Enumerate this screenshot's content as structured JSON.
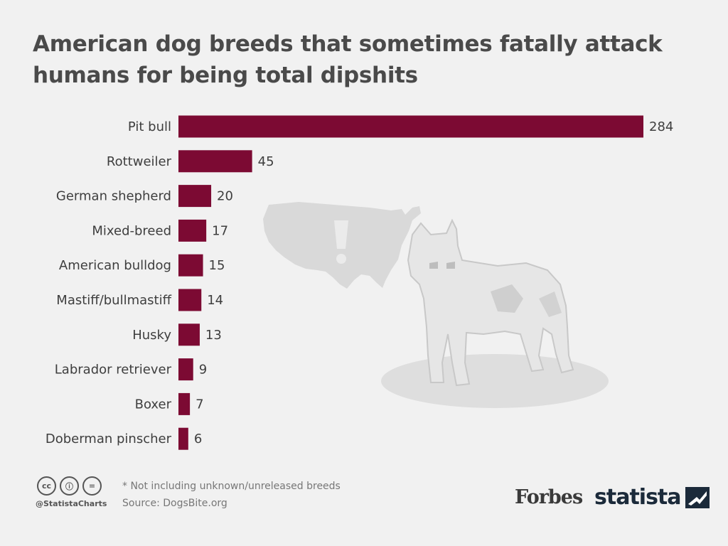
{
  "title_lines": [
    "American dog breeds that sometimes fatally attack",
    "humans for being total dipshits"
  ],
  "colors": {
    "bar": "#7c0a33",
    "background": "#f1f1f1",
    "illustration": "#d9d9d9"
  },
  "icons": [
    "usa-map-icon",
    "dog-illustration-icon",
    "cc-license-icon",
    "cc-by-icon",
    "cc-nd-icon",
    "statista-logo-icon"
  ],
  "chart_data": {
    "type": "bar",
    "orientation": "horizontal",
    "categories": [
      "Pit bull",
      "Rottweiler",
      "German shepherd",
      "Mixed-breed",
      "American bulldog",
      "Mastiff/bullmastiff",
      "Husky",
      "Labrador retriever",
      "Boxer",
      "Doberman pinscher"
    ],
    "values": [
      284,
      45,
      20,
      17,
      15,
      14,
      13,
      9,
      7,
      6
    ],
    "data_labels": [
      "284",
      "45",
      "20",
      "17",
      "15",
      "14",
      "13",
      "9",
      "7",
      "6"
    ],
    "title": "American dog breeds that sometimes fatally attack humans for being total dipshits",
    "xlabel": "",
    "ylabel": "",
    "xlim": [
      0,
      284
    ],
    "grid": false,
    "legend": "none"
  },
  "footer": {
    "cc_labels": [
      "cc",
      "ⓘ",
      "="
    ],
    "handle": "@StatistaCharts",
    "note": "* Not including unknown/unreleased breeds",
    "source": "Source: DogsBite.org",
    "forbes": "Forbes",
    "statista": "statista"
  }
}
